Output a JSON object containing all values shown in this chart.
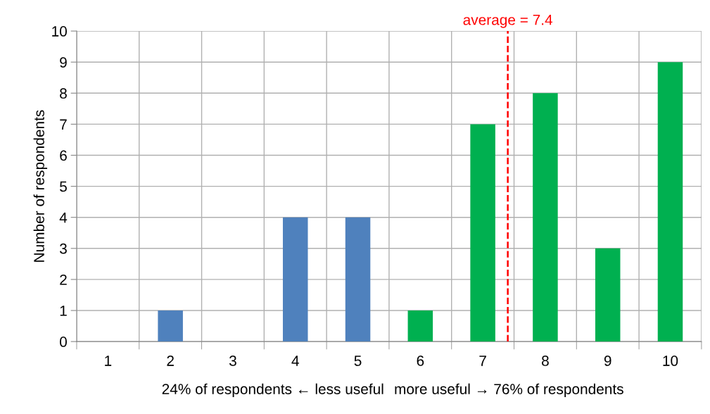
{
  "chart_data": {
    "type": "bar",
    "ylabel": "Number of respondents",
    "x": [
      1,
      2,
      3,
      4,
      5,
      6,
      7,
      8,
      9,
      10
    ],
    "values": [
      0,
      1,
      0,
      4,
      4,
      1,
      7,
      8,
      3,
      9
    ],
    "colors": [
      "#4f81bd",
      "#4f81bd",
      "#4f81bd",
      "#4f81bd",
      "#4f81bd",
      "#00b050",
      "#00b050",
      "#00b050",
      "#00b050",
      "#00b050"
    ],
    "xlim": [
      0.5,
      10.5
    ],
    "xticks": [
      1,
      2,
      3,
      4,
      5,
      6,
      7,
      8,
      9,
      10
    ],
    "ylim": [
      0,
      10
    ],
    "yticks": [
      0,
      1,
      2,
      3,
      4,
      5,
      6,
      7,
      8,
      9,
      10
    ],
    "grid": true,
    "ref_lines": [
      {
        "axis": "x",
        "value": 7.4,
        "label": "average = 7.4",
        "color": "#ff0000",
        "line_style": "dashed"
      }
    ],
    "annotations": [
      "24% of respondents ← less useful",
      "more useful → 76% of respondents"
    ]
  }
}
